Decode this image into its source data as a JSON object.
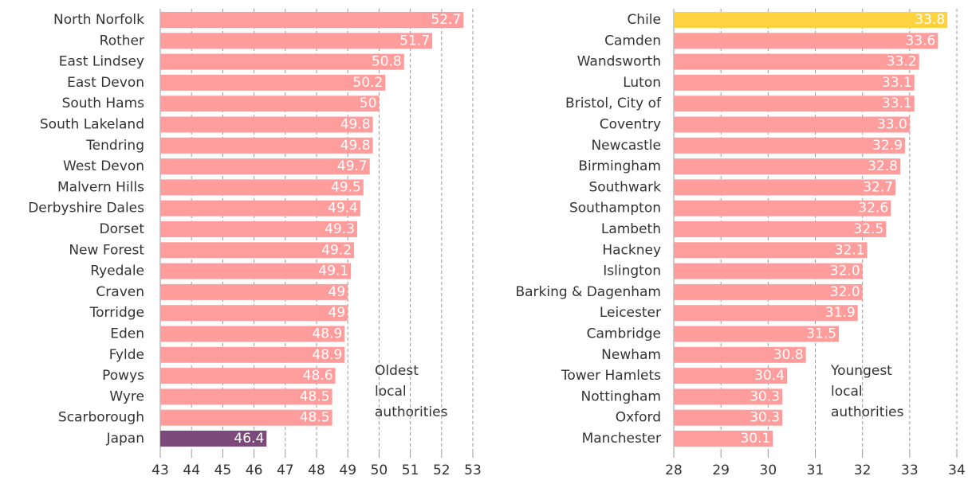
{
  "chart_data": [
    {
      "type": "barh",
      "categories": [
        "North Norfolk",
        "Rother",
        "East Lindsey",
        "East Devon",
        "South Hams",
        "South Lakeland",
        "Tendring",
        "West Devon",
        "Malvern Hills",
        "Derbyshire Dales",
        "Dorset",
        "New Forest",
        "Ryedale",
        "Craven",
        "Torridge",
        "Eden",
        "Fylde",
        "Powys",
        "Wyre",
        "Scarborough",
        "Japan"
      ],
      "values": [
        52.7,
        51.7,
        50.8,
        50.2,
        50,
        49.8,
        49.8,
        49.7,
        49.5,
        49.4,
        49.3,
        49.2,
        49.1,
        49,
        49,
        48.9,
        48.9,
        48.6,
        48.5,
        48.5,
        46.4
      ],
      "colors": [
        "#ff9c9c",
        "#ff9c9c",
        "#ff9c9c",
        "#ff9c9c",
        "#ff9c9c",
        "#ff9c9c",
        "#ff9c9c",
        "#ff9c9c",
        "#ff9c9c",
        "#ff9c9c",
        "#ff9c9c",
        "#ff9c9c",
        "#ff9c9c",
        "#ff9c9c",
        "#ff9c9c",
        "#ff9c9c",
        "#ff9c9c",
        "#ff9c9c",
        "#ff9c9c",
        "#ff9c9c",
        "#7b4a7a"
      ],
      "xlim": [
        43,
        53
      ],
      "xticks": [
        43,
        44,
        45,
        46,
        47,
        48,
        49,
        50,
        51,
        52,
        53
      ],
      "annotation": [
        "Oldest",
        "local",
        "authorities"
      ],
      "grid": true
    },
    {
      "type": "barh",
      "categories": [
        "Chile",
        "Camden",
        "Wandsworth",
        "Luton",
        "Bristol, City of",
        "Coventry",
        "Newcastle",
        "Birmingham",
        "Southwark",
        "Southampton",
        "Lambeth",
        "Hackney",
        "Islington",
        "Barking & Dagenham",
        "Leicester",
        "Cambridge",
        "Newham",
        "Tower Hamlets",
        "Nottingham",
        "Oxford",
        "Manchester"
      ],
      "values": [
        33.8,
        33.6,
        33.2,
        33.1,
        33.1,
        33.0,
        32.9,
        32.8,
        32.7,
        32.6,
        32.5,
        32.1,
        32.0,
        32.0,
        31.9,
        31.5,
        30.8,
        30.4,
        30.3,
        30.3,
        30.1
      ],
      "value_labels": [
        "33.8",
        "33.6",
        "33.2",
        "33.1",
        "33.1",
        "33.0",
        "32.9",
        "32.8",
        "32.7",
        "32.6",
        "32.5",
        "32.1",
        "32.0",
        "32.0",
        "31.9",
        "31.5",
        "30.8",
        "30.4",
        "30.3",
        "30.3",
        "30.1"
      ],
      "colors": [
        "#ffd23f",
        "#ff9c9c",
        "#ff9c9c",
        "#ff9c9c",
        "#ff9c9c",
        "#ff9c9c",
        "#ff9c9c",
        "#ff9c9c",
        "#ff9c9c",
        "#ff9c9c",
        "#ff9c9c",
        "#ff9c9c",
        "#ff9c9c",
        "#ff9c9c",
        "#ff9c9c",
        "#ff9c9c",
        "#ff9c9c",
        "#ff9c9c",
        "#ff9c9c",
        "#ff9c9c",
        "#ff9c9c"
      ],
      "xlim": [
        28,
        34
      ],
      "xticks": [
        28,
        29,
        30,
        31,
        32,
        33,
        34
      ],
      "annotation": [
        "Youngest",
        "local",
        "authorities"
      ],
      "grid": true
    }
  ]
}
